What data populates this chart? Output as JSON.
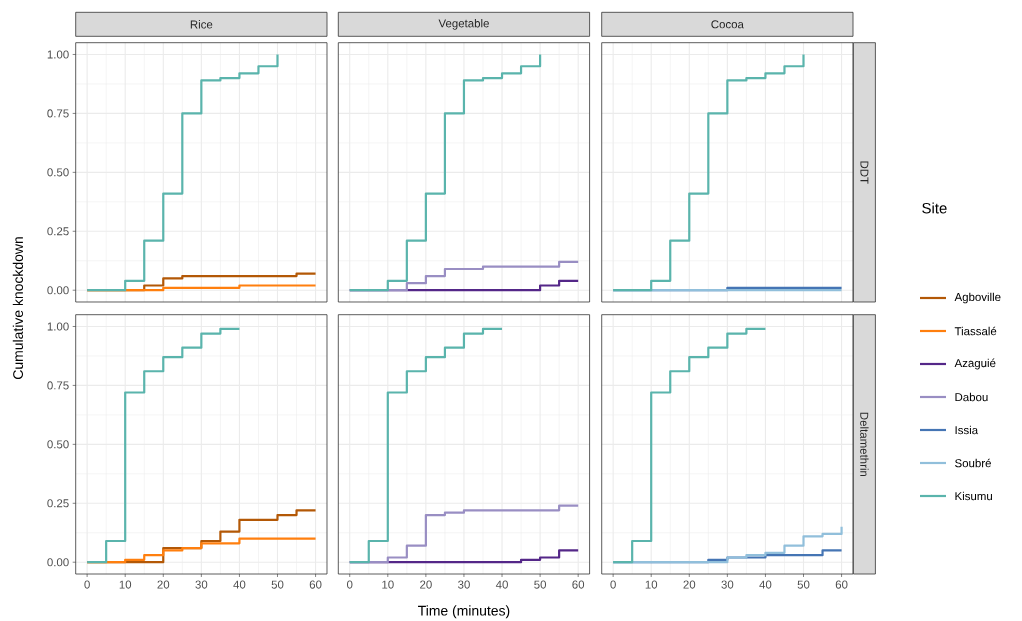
{
  "chart_data": [
    {
      "type": "step",
      "title": "Rice",
      "ylabel": "Cumulative knockdown",
      "xlim": [
        -3,
        63
      ],
      "ylim": [
        -0.05,
        1.05
      ],
      "xticks": [
        0,
        10,
        20,
        30,
        40,
        50,
        60
      ],
      "yticks": [
        {
          "value": 0,
          "label": "0.00"
        },
        {
          "value": 0.25,
          "label": "0.25"
        },
        {
          "value": 0.5,
          "label": "0.50"
        },
        {
          "value": 0.75,
          "label": "0.75"
        },
        {
          "value": 1,
          "label": "1.00"
        }
      ],
      "tick_labels": "y",
      "grid": true,
      "series": [
        {
          "name": "Agboville",
          "color": "#b35806",
          "x": [
            0,
            15,
            20,
            25,
            55,
            60
          ],
          "values": [
            0,
            0.02,
            0.05,
            0.06,
            0.07,
            0.07
          ]
        },
        {
          "name": "Tiassalé",
          "color": "#ff7f0e",
          "x": [
            0,
            20,
            40,
            60
          ],
          "values": [
            0,
            0.01,
            0.02,
            0.02
          ]
        },
        {
          "name": "Kisumu",
          "color": "#5ab4ac",
          "x": [
            0,
            10,
            15,
            20,
            25,
            30,
            35,
            40,
            45,
            50
          ],
          "values": [
            0,
            0.04,
            0.21,
            0.41,
            0.75,
            0.89,
            0.9,
            0.92,
            0.95,
            1.0
          ]
        }
      ]
    },
    {
      "type": "step",
      "title": "Vegetable",
      "xlim": [
        -3,
        63
      ],
      "ylim": [
        -0.05,
        1.05
      ],
      "xticks": [
        0,
        10,
        20,
        30,
        40,
        50,
        60
      ],
      "yticks": [
        0,
        0.25,
        0.5,
        0.75,
        1
      ],
      "tick_labels": false,
      "grid": true,
      "series": [
        {
          "name": "Azaguié",
          "color": "#542788",
          "x": [
            0,
            50,
            55,
            60
          ],
          "values": [
            0,
            0.02,
            0.04,
            0.04
          ]
        },
        {
          "name": "Dabou",
          "color": "#998ec3",
          "x": [
            0,
            15,
            20,
            25,
            35,
            55,
            60
          ],
          "values": [
            0,
            0.03,
            0.06,
            0.09,
            0.1,
            0.12,
            0.12
          ]
        },
        {
          "color": "#5ab4ac",
          "x": [
            0,
            10,
            15,
            20,
            25,
            30,
            35,
            40,
            45,
            50
          ],
          "values": [
            0,
            0.04,
            0.21,
            0.41,
            0.75,
            0.89,
            0.9,
            0.92,
            0.95,
            1.0
          ]
        }
      ]
    },
    {
      "type": "step",
      "title": "Cocoa",
      "y2label": "DDT",
      "legend": "right",
      "legend_title": "Site",
      "xlim": [
        -3,
        63
      ],
      "ylim": [
        -0.05,
        1.05
      ],
      "xticks": [
        0,
        10,
        20,
        30,
        40,
        50,
        60
      ],
      "yticks": [
        0,
        0.25,
        0.5,
        0.75,
        1
      ],
      "tick_labels": false,
      "grid": true,
      "series": [
        {
          "name": "Issia",
          "color": "#4575b4",
          "x": [
            0,
            30,
            60
          ],
          "values": [
            0,
            0.01,
            0.01
          ]
        },
        {
          "name": "Soubré",
          "color": "#91bfdb",
          "x": [
            0,
            60
          ],
          "values": [
            0,
            0
          ]
        },
        {
          "color": "#5ab4ac",
          "x": [
            0,
            10,
            15,
            20,
            25,
            30,
            35,
            40,
            45,
            50
          ],
          "values": [
            0,
            0.04,
            0.21,
            0.41,
            0.75,
            0.89,
            0.9,
            0.92,
            0.95,
            1.0
          ]
        }
      ]
    },
    {
      "type": "step",
      "xlim": [
        -3,
        63
      ],
      "ylim": [
        -0.05,
        1.05
      ],
      "xticks": [
        0,
        10,
        20,
        30,
        40,
        50,
        60
      ],
      "yticks": [
        {
          "value": 0,
          "label": "0.00"
        },
        {
          "value": 0.25,
          "label": "0.25"
        },
        {
          "value": 0.5,
          "label": "0.50"
        },
        {
          "value": 0.75,
          "label": "0.75"
        },
        {
          "value": 1,
          "label": "1.00"
        }
      ],
      "grid": true,
      "series": [
        {
          "color": "#b35806",
          "x": [
            0,
            20,
            30,
            35,
            40,
            50,
            55,
            60
          ],
          "values": [
            0,
            0.06,
            0.09,
            0.13,
            0.18,
            0.2,
            0.22,
            0.22
          ]
        },
        {
          "color": "#ff7f0e",
          "x": [
            0,
            10,
            15,
            20,
            25,
            30,
            40,
            60
          ],
          "values": [
            0,
            0.01,
            0.03,
            0.05,
            0.06,
            0.08,
            0.1,
            0.1
          ]
        },
        {
          "color": "#5ab4ac",
          "x": [
            0,
            5,
            10,
            15,
            20,
            25,
            30,
            35,
            40
          ],
          "values": [
            0,
            0.09,
            0.72,
            0.81,
            0.87,
            0.91,
            0.97,
            0.99,
            0.99
          ]
        }
      ]
    },
    {
      "type": "step",
      "xlabel": "Time (minutes)",
      "xlim": [
        -3,
        63
      ],
      "ylim": [
        -0.05,
        1.05
      ],
      "xticks": [
        0,
        10,
        20,
        30,
        40,
        50,
        60
      ],
      "yticks": [
        0,
        0.25,
        0.5,
        0.75,
        1
      ],
      "tick_labels": "x",
      "grid": true,
      "series": [
        {
          "color": "#542788",
          "x": [
            0,
            45,
            50,
            55,
            60
          ],
          "values": [
            0,
            0.01,
            0.02,
            0.05,
            0.05
          ]
        },
        {
          "color": "#998ec3",
          "x": [
            0,
            10,
            15,
            20,
            25,
            30,
            55,
            60
          ],
          "values": [
            0,
            0.02,
            0.07,
            0.2,
            0.21,
            0.22,
            0.24,
            0.24
          ]
        },
        {
          "color": "#5ab4ac",
          "x": [
            0,
            5,
            10,
            15,
            20,
            25,
            30,
            35,
            40
          ],
          "values": [
            0,
            0.09,
            0.72,
            0.81,
            0.87,
            0.91,
            0.97,
            0.99,
            0.99
          ]
        }
      ]
    },
    {
      "type": "step",
      "y2label": "Deltamethrin",
      "xlim": [
        -3,
        63
      ],
      "ylim": [
        -0.05,
        1.05
      ],
      "xticks": [
        0,
        10,
        20,
        30,
        40,
        50,
        60
      ],
      "yticks": [
        0,
        0.25,
        0.5,
        0.75,
        1
      ],
      "tick_labels": "x",
      "grid": true,
      "series": [
        {
          "color": "#4575b4",
          "x": [
            0,
            25,
            30,
            40,
            55,
            60
          ],
          "values": [
            0,
            0.01,
            0.02,
            0.03,
            0.05,
            0.05
          ]
        },
        {
          "color": "#91bfdb",
          "x": [
            0,
            30,
            35,
            40,
            45,
            50,
            55,
            60
          ],
          "values": [
            0,
            0.02,
            0.03,
            0.04,
            0.07,
            0.11,
            0.12,
            0.15
          ]
        },
        {
          "color": "#5ab4ac",
          "x": [
            0,
            5,
            10,
            15,
            20,
            25,
            30,
            35,
            40
          ],
          "values": [
            0,
            0.09,
            0.72,
            0.81,
            0.87,
            0.91,
            0.97,
            0.99,
            0.99
          ]
        }
      ]
    }
  ]
}
